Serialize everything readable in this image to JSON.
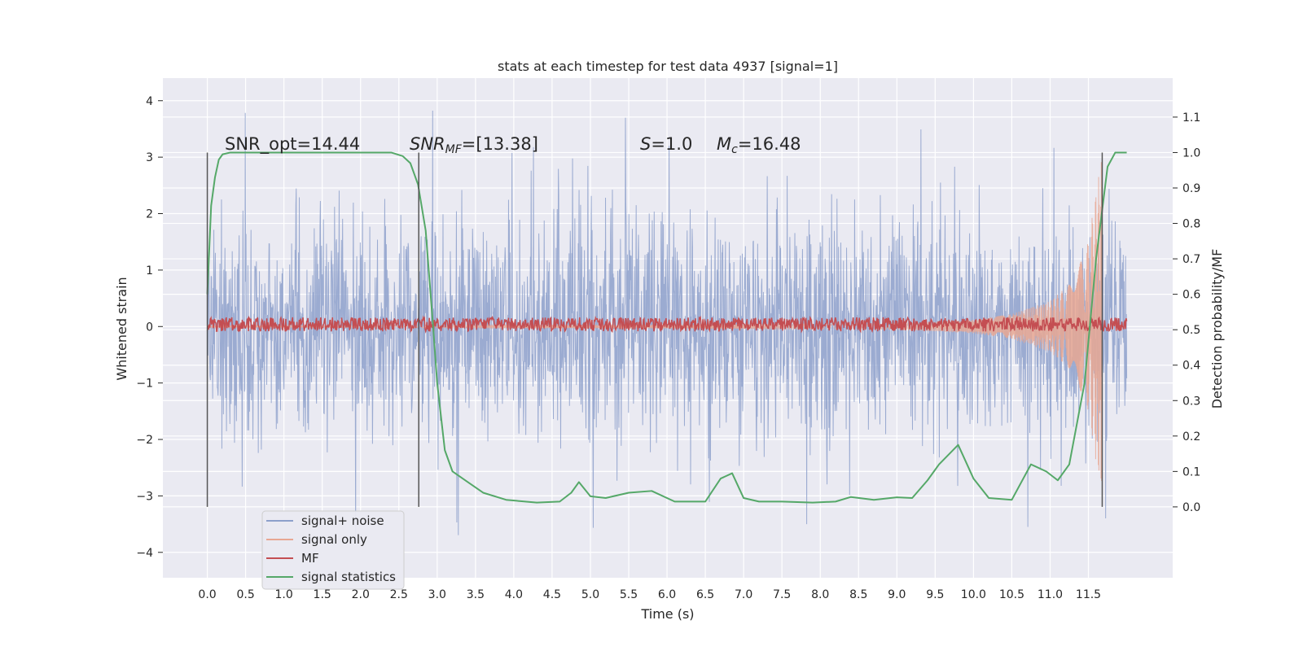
{
  "chart_data": {
    "type": "line",
    "title": "stats at each timestep for test data 4937 [signal=1]",
    "xlabel": "Time (s)",
    "ylabel": "Whitened strain",
    "y2label": "Detection probability/MF",
    "xlim": [
      -0.58,
      12.6
    ],
    "ylim": [
      -4.45,
      4.4
    ],
    "y2lim": [
      -0.2,
      1.21
    ],
    "xticks": [
      0.0,
      0.5,
      1.0,
      1.5,
      2.0,
      2.5,
      3.0,
      3.5,
      4.0,
      4.5,
      5.0,
      5.5,
      6.0,
      6.5,
      7.0,
      7.5,
      8.0,
      8.5,
      9.0,
      9.5,
      10.0,
      10.5,
      11.0,
      11.5
    ],
    "xtick_labels": [
      "0.0",
      "0.5",
      "1.0",
      "1.5",
      "2.0",
      "2.5",
      "3.0",
      "3.5",
      "4.0",
      "4.5",
      "5.0",
      "5.5",
      "6.0",
      "6.5",
      "7.0",
      "7.5",
      "8.0",
      "8.5",
      "9.0",
      "9.5",
      "10.0",
      "10.5",
      "11.0",
      "11.5"
    ],
    "yticks": [
      -4,
      -3,
      -2,
      -1,
      0,
      1,
      2,
      3,
      4
    ],
    "ytick_labels": [
      "−4",
      "−3",
      "−2",
      "−1",
      "0",
      "1",
      "2",
      "3",
      "4"
    ],
    "y2ticks": [
      0.0,
      0.1,
      0.2,
      0.3,
      0.4,
      0.5,
      0.6,
      0.7,
      0.8,
      0.9,
      1.0,
      1.1
    ],
    "y2tick_labels": [
      "0.0",
      "0.1",
      "0.2",
      "0.3",
      "0.4",
      "0.5",
      "0.6",
      "0.7",
      "0.8",
      "0.9",
      "1.0",
      "1.1"
    ],
    "grid": true,
    "legend_placement": "lower-left",
    "annotations": {
      "snr_opt": "SNR_opt=14.44",
      "snr_mf_label": "SNR",
      "snr_mf_sub": "MF",
      "snr_mf_value": "=[13.38]",
      "s_label": "S",
      "s_value": "=1.0",
      "mc_label": "M",
      "mc_sub": "c",
      "mc_value": "=16.48"
    },
    "vertical_markers": [
      0.0,
      2.76,
      11.68
    ],
    "series": [
      {
        "name": "signal+ noise",
        "color": "#8da0cb",
        "axis": "left",
        "x_range": [
          0.0,
          12.0
        ],
        "typical_amplitude": 1.8,
        "peak_amplitude": 4.0
      },
      {
        "name": "signal only",
        "color": "#e8a793",
        "axis": "left",
        "x_range": [
          0.0,
          11.68
        ],
        "envelope_x": [
          0.0,
          9.0,
          10.0,
          10.5,
          11.0,
          11.3,
          11.5,
          11.6,
          11.68
        ],
        "envelope_amplitude": [
          0.01,
          0.05,
          0.12,
          0.22,
          0.45,
          0.8,
          1.5,
          2.4,
          3.0
        ]
      },
      {
        "name": "MF",
        "color": "#c44e52",
        "axis": "right",
        "x_range": [
          0.0,
          12.0
        ],
        "mean": 0.515,
        "spread": 0.02
      },
      {
        "name": "signal statistics",
        "color": "#55a868",
        "axis": "right",
        "x": [
          0.0,
          0.05,
          0.1,
          0.15,
          0.2,
          0.3,
          0.5,
          1.0,
          2.0,
          2.4,
          2.55,
          2.65,
          2.75,
          2.85,
          2.95,
          3.0,
          3.1,
          3.2,
          3.4,
          3.6,
          3.9,
          4.3,
          4.6,
          4.75,
          4.85,
          5.0,
          5.2,
          5.5,
          5.8,
          6.1,
          6.5,
          6.7,
          6.85,
          7.0,
          7.2,
          7.5,
          7.9,
          8.2,
          8.4,
          8.7,
          9.0,
          9.2,
          9.4,
          9.55,
          9.8,
          10.0,
          10.2,
          10.5,
          10.75,
          10.95,
          11.1,
          11.25,
          11.45,
          11.6,
          11.75,
          11.85,
          12.0
        ],
        "y": [
          0.6,
          0.85,
          0.93,
          0.98,
          0.995,
          1.0,
          1.0,
          1.0,
          1.0,
          1.0,
          0.99,
          0.97,
          0.91,
          0.78,
          0.5,
          0.35,
          0.16,
          0.1,
          0.07,
          0.04,
          0.02,
          0.012,
          0.015,
          0.04,
          0.07,
          0.03,
          0.025,
          0.04,
          0.045,
          0.015,
          0.015,
          0.08,
          0.095,
          0.025,
          0.015,
          0.015,
          0.012,
          0.015,
          0.028,
          0.02,
          0.027,
          0.025,
          0.075,
          0.12,
          0.175,
          0.08,
          0.025,
          0.02,
          0.12,
          0.1,
          0.075,
          0.12,
          0.35,
          0.7,
          0.96,
          1.0,
          1.0
        ]
      }
    ]
  }
}
